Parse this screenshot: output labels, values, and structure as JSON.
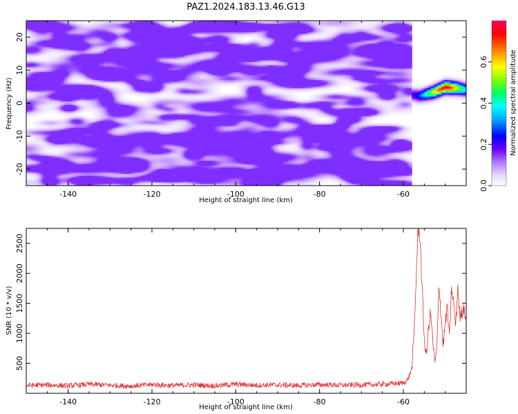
{
  "title": "PAZ1.2024.183.13.46.G13",
  "chart_data": [
    {
      "type": "heatmap",
      "title": "PAZ1.2024.183.13.46.G13",
      "xlabel": "Height of straight line (km)",
      "ylabel": "Frequency (Hz)",
      "xlim": [
        -150,
        -45
      ],
      "ylim": [
        -25,
        25
      ],
      "xticks": [
        -140,
        -120,
        -100,
        -80,
        -60
      ],
      "yticks": [
        -20,
        -10,
        0,
        10,
        20
      ],
      "colorbar": {
        "label": "Normalized spectral amplitude",
        "range": [
          0,
          0.8
        ],
        "ticks": [
          0.0,
          0.2,
          0.4,
          0.6
        ],
        "colormap": [
          "#ffffff",
          "#e8d8ff",
          "#c79cff",
          "#8a3dff",
          "#5a00ff",
          "#0000ff",
          "#00bfff",
          "#00ffff",
          "#00ff66",
          "#7fff00",
          "#ffff00",
          "#ff8000",
          "#ff0000",
          "#ff0066"
        ]
      },
      "noise_region": {
        "x_range": [
          -150,
          -58
        ],
        "level": 0.1
      },
      "signal_band": {
        "x_range": [
          -58,
          -45
        ],
        "freq_center": [
          [
            -58,
            2.5
          ],
          [
            -56,
            2.2
          ],
          [
            -53,
            3.2
          ],
          [
            -50,
            4.8
          ],
          [
            -47,
            4.5
          ],
          [
            -45,
            4.0
          ]
        ],
        "peak_amplitude": 0.75,
        "peak_x": -50
      }
    },
    {
      "type": "line",
      "xlabel": "Height of straight line (km)",
      "ylabel": "SNR (10 * v/v)",
      "xlim": [
        -150,
        -45
      ],
      "ylim": [
        0,
        2750
      ],
      "xticks": [
        -140,
        -120,
        -100,
        -80,
        -60
      ],
      "yticks": [
        500,
        1000,
        1500,
        2000,
        2500
      ],
      "color": "#e03030",
      "x": [
        -150,
        -145,
        -140,
        -135,
        -130,
        -125,
        -120,
        -115,
        -110,
        -105,
        -100,
        -95,
        -90,
        -85,
        -80,
        -75,
        -70,
        -65,
        -60,
        -59,
        -58,
        -57.5,
        -57,
        -56.5,
        -56,
        -55.5,
        -55,
        -54.5,
        -54,
        -53.5,
        -53,
        -52.5,
        -52,
        -51.5,
        -51,
        -50.5,
        -50,
        -49.5,
        -49,
        -48.5,
        -48,
        -47.5,
        -47,
        -46.5,
        -46,
        -45.5,
        -45
      ],
      "values": [
        130,
        140,
        125,
        150,
        135,
        120,
        145,
        130,
        140,
        125,
        150,
        135,
        140,
        130,
        145,
        135,
        140,
        150,
        170,
        220,
        400,
        900,
        1800,
        2750,
        2600,
        1700,
        900,
        600,
        1100,
        1350,
        900,
        500,
        700,
        1850,
        1300,
        800,
        1150,
        1450,
        900,
        1750,
        1500,
        1100,
        1800,
        1250,
        1350,
        1450,
        1200
      ]
    }
  ]
}
